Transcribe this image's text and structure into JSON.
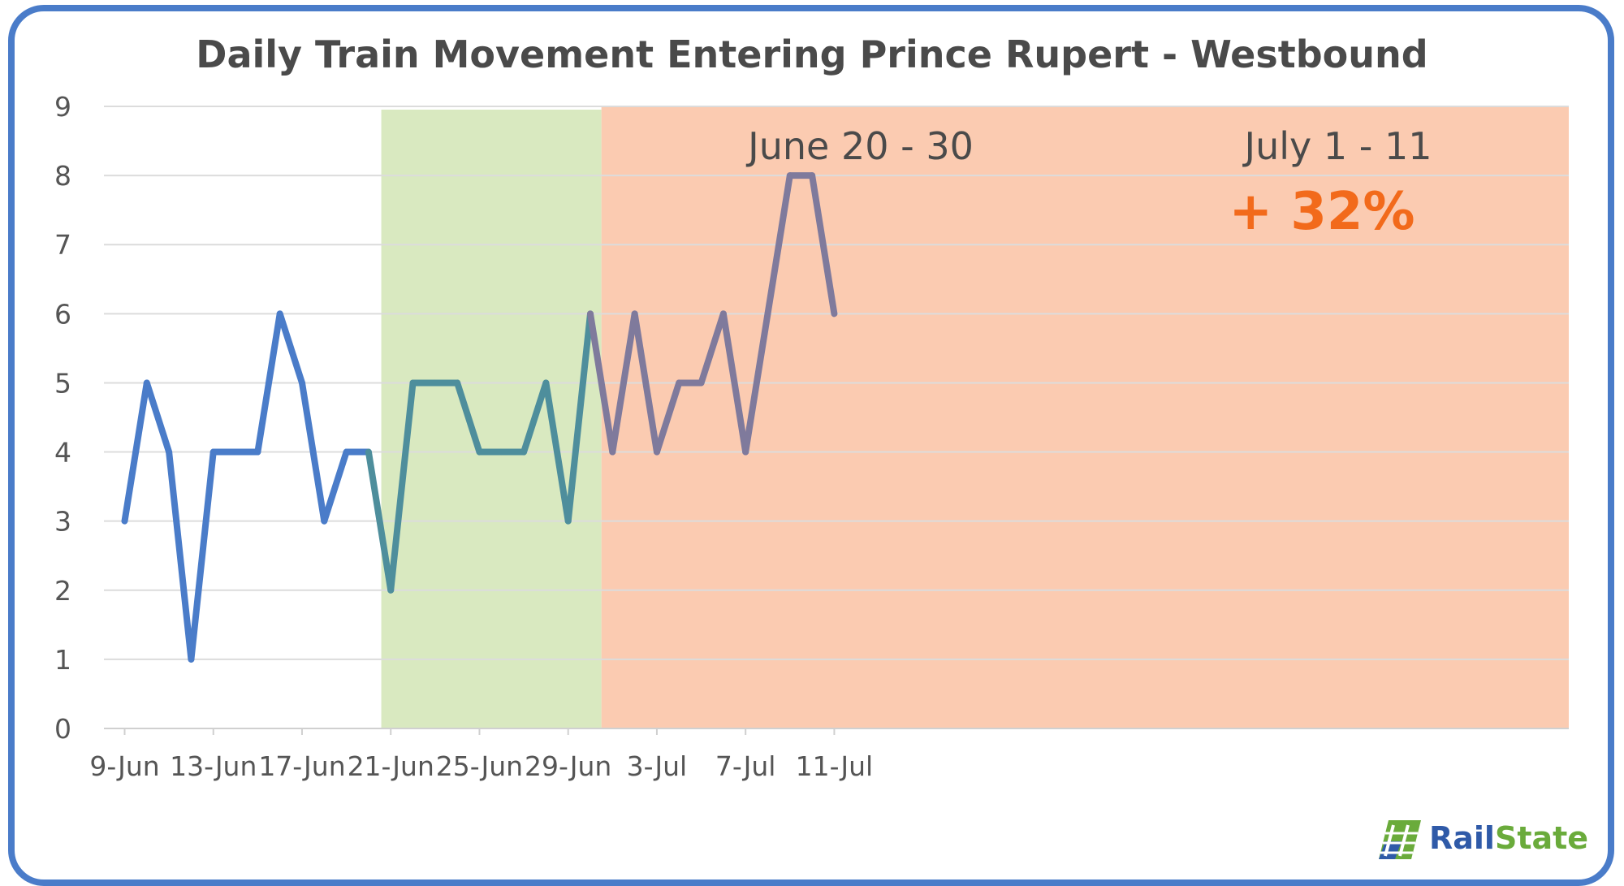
{
  "chart_data": {
    "type": "line",
    "title": "Daily Train Movement Entering Prince Rupert - Westbound",
    "xlabel": "",
    "ylabel": "",
    "ylim": [
      0,
      9
    ],
    "yticks": [
      0,
      1,
      2,
      3,
      4,
      5,
      6,
      7,
      8,
      9
    ],
    "grid": true,
    "x": [
      "9-Jun",
      "10-Jun",
      "11-Jun",
      "12-Jun",
      "13-Jun",
      "14-Jun",
      "15-Jun",
      "16-Jun",
      "17-Jun",
      "18-Jun",
      "19-Jun",
      "20-Jun",
      "21-Jun",
      "22-Jun",
      "23-Jun",
      "24-Jun",
      "25-Jun",
      "26-Jun",
      "27-Jun",
      "28-Jun",
      "29-Jun",
      "30-Jun",
      "1-Jul",
      "2-Jul",
      "3-Jul",
      "4-Jul",
      "5-Jul",
      "6-Jul",
      "7-Jul",
      "8-Jul",
      "9-Jul",
      "10-Jul",
      "11-Jul"
    ],
    "xtick_labels": [
      "9-Jun",
      "13-Jun",
      "17-Jun",
      "21-Jun",
      "25-Jun",
      "29-Jun",
      "3-Jul",
      "7-Jul",
      "11-Jul"
    ],
    "series": [
      {
        "values": [
          3,
          5,
          4,
          1,
          4,
          4,
          4,
          6,
          5,
          3,
          4,
          4,
          2,
          5,
          5,
          5,
          4,
          4,
          4,
          5,
          3,
          6,
          4,
          6,
          4,
          5,
          5,
          6,
          4,
          6,
          8,
          8,
          6
        ],
        "segment_colors": [
          "#4a7cc9",
          "#4e8e9c",
          "#7f7a9c"
        ]
      }
    ],
    "shaded_regions": [
      {
        "label": "June 20 - 30",
        "color": "#d9e9c0"
      },
      {
        "label": "July 1 - 11",
        "color": "#fbcbb1",
        "annotation": "+ 32%",
        "annotation_color": "#f26a1b"
      }
    ]
  },
  "logo": {
    "rail": "Rail",
    "state": "State"
  }
}
